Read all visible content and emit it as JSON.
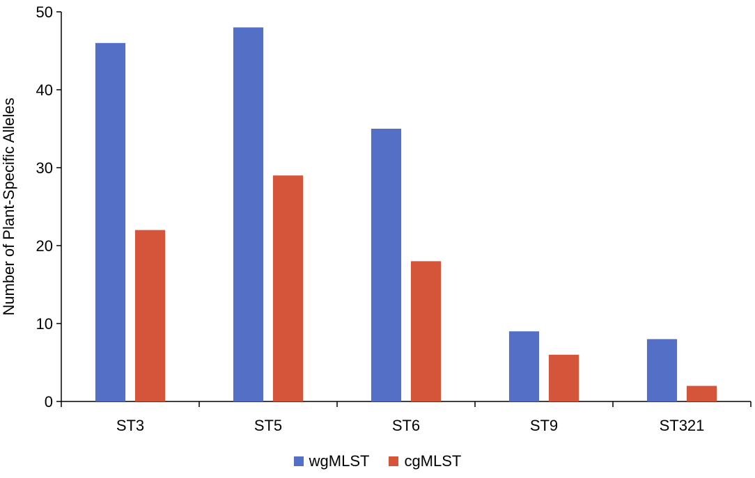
{
  "chart_data": {
    "type": "bar",
    "title": "",
    "xlabel": "",
    "ylabel": "Number of Plant-Specific Alleles",
    "categories": [
      "ST3",
      "ST5",
      "ST6",
      "ST9",
      "ST321"
    ],
    "series": [
      {
        "name": "wgMLST",
        "color": "#5470C6",
        "values": [
          46,
          48,
          35,
          9,
          8
        ]
      },
      {
        "name": "cgMLST",
        "color": "#D4553A",
        "values": [
          22,
          29,
          18,
          6,
          2
        ]
      }
    ],
    "ylim": [
      0,
      50
    ],
    "yticks": [
      0,
      10,
      20,
      30,
      40,
      50
    ],
    "grid": false,
    "legend_position": "bottom-center"
  }
}
